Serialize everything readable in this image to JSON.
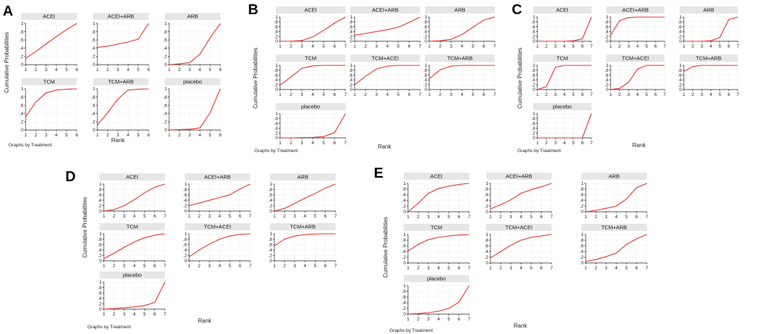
{
  "chart_data": [
    {
      "panel": "A",
      "type": "line",
      "ylabel": "Cumulative Probabilities",
      "xlabel": "Rank",
      "note": "Graphs by Treatment",
      "x": [
        1,
        2,
        3,
        4,
        5,
        6
      ],
      "ylim": [
        0,
        1
      ],
      "yticks": [
        "0",
        ".2",
        ".4",
        ".6",
        ".8",
        "1"
      ],
      "series": [
        {
          "name": "ACEI",
          "values": [
            0.15,
            0.32,
            0.5,
            0.68,
            0.85,
            1.0
          ]
        },
        {
          "name": "ACEI+ARB",
          "values": [
            0.42,
            0.45,
            0.5,
            0.55,
            0.62,
            1.0
          ]
        },
        {
          "name": "ARB",
          "values": [
            0.0,
            0.02,
            0.05,
            0.25,
            0.65,
            1.0
          ]
        },
        {
          "name": "TCM",
          "values": [
            0.32,
            0.68,
            0.9,
            0.97,
            0.99,
            1.0
          ]
        },
        {
          "name": "TCM+ARB",
          "values": [
            0.12,
            0.42,
            0.75,
            0.97,
            0.99,
            1.0
          ]
        },
        {
          "name": "placebo",
          "values": [
            0.0,
            0.01,
            0.02,
            0.05,
            0.42,
            1.0
          ]
        }
      ]
    },
    {
      "panel": "B",
      "type": "line",
      "ylabel": "Cumulative Probabilities",
      "xlabel": "Rank",
      "note": "Graphs by Treatment",
      "x": [
        1,
        2,
        3,
        4,
        5,
        6,
        7
      ],
      "ylim": [
        0,
        1
      ],
      "yticks": [
        "0",
        ".2",
        ".4",
        ".6",
        ".8",
        "1"
      ],
      "series": [
        {
          "name": "ACEI",
          "values": [
            0.0,
            0.0,
            0.03,
            0.18,
            0.45,
            0.75,
            1.0
          ]
        },
        {
          "name": "ACEI+ARB",
          "values": [
            0.25,
            0.32,
            0.4,
            0.48,
            0.58,
            0.78,
            1.0
          ]
        },
        {
          "name": "ARB",
          "values": [
            0.0,
            0.02,
            0.08,
            0.28,
            0.58,
            0.88,
            1.0
          ]
        },
        {
          "name": "TCM",
          "values": [
            0.18,
            0.52,
            0.88,
            0.98,
            1.0,
            1.0,
            1.0
          ]
        },
        {
          "name": "TCM+ACEI",
          "values": [
            0.2,
            0.55,
            0.85,
            0.97,
            1.0,
            1.0,
            1.0
          ]
        },
        {
          "name": "TCM+ARB",
          "values": [
            0.45,
            0.82,
            0.97,
            1.0,
            1.0,
            1.0,
            1.0
          ]
        },
        {
          "name": "placebo",
          "values": [
            0.0,
            0.0,
            0.01,
            0.02,
            0.05,
            0.22,
            1.0
          ]
        }
      ]
    },
    {
      "panel": "C",
      "type": "line",
      "ylabel": "Cumulative Probabilities",
      "xlabel": "Rank",
      "note": "Graphs by Treatment",
      "x": [
        1,
        2,
        3,
        4,
        5,
        6,
        7
      ],
      "ylim": [
        0,
        1
      ],
      "yticks": [
        "0",
        ".2",
        ".4",
        ".6",
        ".8",
        "1"
      ],
      "series": [
        {
          "name": "ACEI",
          "values": [
            0.0,
            0.0,
            0.0,
            0.0,
            0.02,
            0.1,
            1.0
          ]
        },
        {
          "name": "ACEI+ARB",
          "values": [
            0.25,
            0.85,
            0.98,
            1.0,
            1.0,
            1.0,
            1.0
          ]
        },
        {
          "name": "ARB",
          "values": [
            0.0,
            0.0,
            0.0,
            0.02,
            0.15,
            0.9,
            1.0
          ]
        },
        {
          "name": "TCM",
          "values": [
            0.0,
            0.12,
            0.92,
            1.0,
            1.0,
            1.0,
            1.0
          ]
        },
        {
          "name": "TCM+ACEI",
          "values": [
            0.0,
            0.05,
            0.3,
            0.85,
            1.0,
            1.0,
            1.0
          ]
        },
        {
          "name": "TCM+ARB",
          "values": [
            0.75,
            0.95,
            1.0,
            1.0,
            1.0,
            1.0,
            1.0
          ]
        },
        {
          "name": "placebo",
          "values": [
            0.0,
            0.0,
            0.0,
            0.0,
            0.0,
            0.0,
            1.0
          ]
        }
      ]
    },
    {
      "panel": "D",
      "type": "line",
      "ylabel": "Cumulative Probabilities",
      "xlabel": "Rank",
      "note": "Graphs by Treatment",
      "x": [
        1,
        2,
        3,
        4,
        5,
        6,
        7
      ],
      "ylim": [
        0,
        1
      ],
      "yticks": [
        "0",
        ".2",
        ".4",
        ".6",
        ".8",
        "1"
      ],
      "series": [
        {
          "name": "ACEI",
          "values": [
            0.0,
            0.05,
            0.2,
            0.42,
            0.68,
            0.88,
            1.0
          ]
        },
        {
          "name": "ACEI+ARB",
          "values": [
            0.2,
            0.3,
            0.4,
            0.5,
            0.6,
            0.82,
            1.0
          ]
        },
        {
          "name": "ARB",
          "values": [
            0.0,
            0.1,
            0.28,
            0.48,
            0.65,
            0.85,
            1.0
          ]
        },
        {
          "name": "TCM",
          "values": [
            0.08,
            0.28,
            0.5,
            0.7,
            0.85,
            0.95,
            1.0
          ]
        },
        {
          "name": "TCM+ACEI",
          "values": [
            0.15,
            0.4,
            0.62,
            0.8,
            0.92,
            0.98,
            1.0
          ]
        },
        {
          "name": "TCM+ARB",
          "values": [
            0.55,
            0.8,
            0.92,
            0.97,
            0.99,
            1.0,
            1.0
          ]
        },
        {
          "name": "placebo",
          "values": [
            0.0,
            0.02,
            0.05,
            0.08,
            0.13,
            0.25,
            1.0
          ]
        }
      ]
    },
    {
      "panel": "E",
      "type": "line",
      "ylabel": "Cumulative Probabilities",
      "xlabel": "Rank",
      "note": "Graphs by Treatment",
      "x": [
        1,
        2,
        3,
        4,
        5,
        6,
        7
      ],
      "ylim": [
        0,
        1
      ],
      "yticks": [
        "0",
        ".2",
        ".4",
        ".6",
        ".8",
        "1"
      ],
      "series": [
        {
          "name": "ACEI",
          "values": [
            0.0,
            0.3,
            0.65,
            0.82,
            0.9,
            0.96,
            1.0
          ]
        },
        {
          "name": "ACEI+ARB",
          "values": [
            0.1,
            0.25,
            0.42,
            0.65,
            0.78,
            0.88,
            1.0
          ]
        },
        {
          "name": "ARB",
          "values": [
            0.0,
            0.05,
            0.12,
            0.2,
            0.45,
            0.85,
            1.0
          ]
        },
        {
          "name": "TCM",
          "values": [
            0.42,
            0.65,
            0.82,
            0.9,
            0.95,
            0.98,
            1.0
          ]
        },
        {
          "name": "TCM+ACEI",
          "values": [
            0.18,
            0.4,
            0.62,
            0.8,
            0.9,
            0.95,
            1.0
          ]
        },
        {
          "name": "TCM+ARB",
          "values": [
            0.05,
            0.12,
            0.22,
            0.35,
            0.65,
            0.85,
            1.0
          ]
        },
        {
          "name": "placebo",
          "values": [
            0.0,
            0.02,
            0.05,
            0.1,
            0.2,
            0.42,
            1.0
          ]
        }
      ]
    }
  ]
}
